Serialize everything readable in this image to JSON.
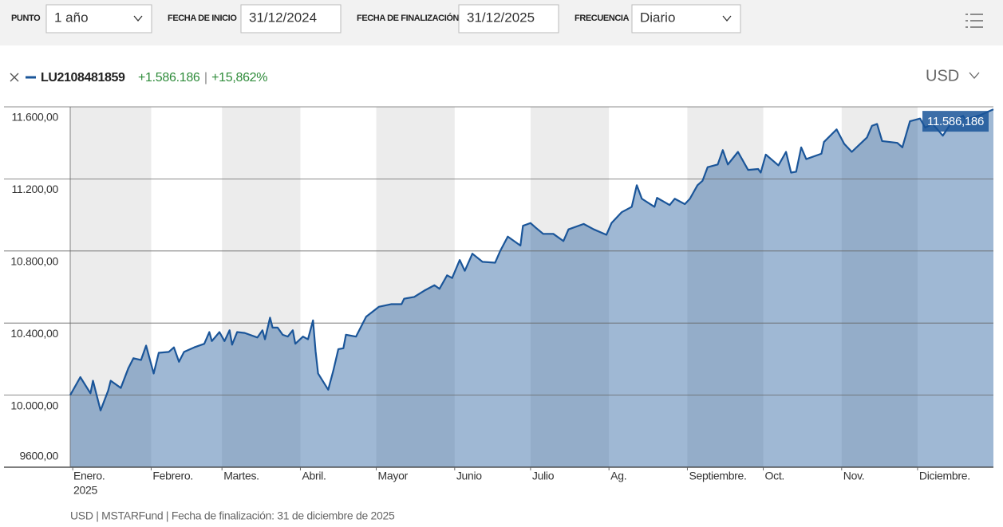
{
  "toolbar": {
    "fields": [
      {
        "label": "PUNTO",
        "value": "1 año"
      },
      {
        "label": "FECHA DE INICIO",
        "value": "31/12/2024"
      },
      {
        "label": "FECHA DE FINALIZACIÓN",
        "value": "31/12/2025"
      },
      {
        "label": "FRECUENCIA",
        "value": "Diario"
      }
    ]
  },
  "header": {
    "change": "+1.586.186",
    "separator": "|",
    "change_pct": "+15,862%",
    "currency": "USD"
  },
  "footnote": "USD | MSTARFund | Fecha de finalización: 31 de diciembre de 2025",
  "chart_data": {
    "type": "line",
    "x_sublabel": "2025",
    "x": [
      0,
      4,
      8,
      9,
      12,
      15,
      16,
      20,
      23,
      25,
      28,
      30,
      33,
      35,
      39,
      41,
      43,
      45,
      49,
      53,
      55,
      56,
      59,
      61,
      63,
      64,
      66,
      69,
      74,
      76,
      77,
      79,
      80,
      82,
      84,
      86,
      88,
      89,
      92,
      94,
      96,
      97,
      98,
      102,
      104,
      106,
      108,
      109,
      113,
      117,
      122,
      127,
      131,
      132,
      136,
      140,
      144,
      146,
      149,
      151,
      154,
      156,
      159,
      163,
      168,
      170,
      173,
      178,
      179,
      182,
      184,
      187,
      191,
      195,
      197,
      203,
      207,
      212,
      214,
      218,
      222,
      224,
      226,
      231,
      232,
      237,
      239,
      243,
      245,
      248,
      250,
      252,
      256,
      258,
      260,
      264,
      268,
      272,
      273,
      275,
      280,
      283,
      285,
      287,
      289,
      291,
      297,
      298,
      303,
      306,
      309,
      315,
      317,
      319,
      321,
      327,
      329,
      332,
      336,
      338,
      341,
      345,
      349,
      353,
      354,
      360,
      365
    ],
    "series": [
      {
        "name": "LU2108481859",
        "color": "#1a5599",
        "values": [
          10000,
          10100,
          10010,
          10080,
          9915,
          10025,
          10080,
          10040,
          10150,
          10205,
          10195,
          10275,
          10120,
          10235,
          10240,
          10265,
          10185,
          10240,
          10265,
          10285,
          10350,
          10300,
          10350,
          10300,
          10360,
          10280,
          10350,
          10345,
          10320,
          10360,
          10310,
          10430,
          10375,
          10375,
          10335,
          10325,
          10360,
          10285,
          10325,
          10310,
          10415,
          10245,
          10120,
          10030,
          10135,
          10255,
          10260,
          10335,
          10325,
          10435,
          10490,
          10505,
          10505,
          10535,
          10545,
          10580,
          10610,
          10590,
          10665,
          10650,
          10750,
          10690,
          10785,
          10740,
          10735,
          10800,
          10880,
          10830,
          10940,
          10955,
          10930,
          10895,
          10895,
          10855,
          10920,
          10950,
          10920,
          10890,
          10955,
          11015,
          11045,
          11165,
          11090,
          11045,
          11095,
          11055,
          11090,
          11060,
          11090,
          11165,
          11190,
          11265,
          11280,
          11360,
          11280,
          11350,
          11250,
          11255,
          11235,
          11335,
          11275,
          11350,
          11235,
          11240,
          11375,
          11310,
          11340,
          11405,
          11475,
          11395,
          11350,
          11430,
          11495,
          11505,
          11410,
          11400,
          11375,
          11520,
          11535,
          11485,
          11505,
          11440,
          11525,
          11550,
          11530,
          11555,
          11586.186
        ],
        "value_labels": [
          null,
          null,
          null,
          null,
          null,
          null,
          null,
          null,
          null,
          null,
          null,
          null,
          null,
          null,
          null,
          null,
          null,
          null,
          null,
          null,
          null,
          null,
          null,
          null,
          null,
          null,
          null,
          null,
          null,
          null,
          null,
          null,
          null,
          null,
          null,
          null,
          null,
          null,
          null,
          null,
          null,
          null,
          null,
          null,
          null,
          null,
          null,
          null,
          null,
          null,
          null,
          null,
          null,
          null,
          null,
          null,
          null,
          null,
          null,
          null,
          null,
          null,
          null,
          null,
          null,
          null,
          null,
          null,
          null,
          null,
          null,
          null,
          null,
          null,
          null,
          null,
          null,
          null,
          null,
          null,
          null,
          null,
          null,
          null,
          null,
          null,
          null,
          null,
          null,
          null,
          null,
          null,
          null,
          null,
          null,
          null,
          null,
          null,
          null,
          null,
          null,
          null,
          null,
          null,
          null,
          null,
          null,
          null,
          null,
          null,
          null,
          null,
          null,
          null,
          null,
          null,
          null,
          null,
          null,
          null,
          null,
          null,
          null,
          null,
          null,
          null,
          "11.586,186"
        ]
      }
    ],
    "xlim": [
      0,
      365
    ],
    "xticks": [
      {
        "value": 1,
        "label": "Enero."
      },
      {
        "value": 32,
        "label": "Febrero."
      },
      {
        "value": 60,
        "label": "Martes."
      },
      {
        "value": 91,
        "label": "Abril."
      },
      {
        "value": 121,
        "label": "Mayor"
      },
      {
        "value": 152,
        "label": "Junio"
      },
      {
        "value": 182,
        "label": "Julio"
      },
      {
        "value": 213,
        "label": "Ag."
      },
      {
        "value": 244,
        "label": "Septiembre."
      },
      {
        "value": 274,
        "label": "Oct."
      },
      {
        "value": 305,
        "label": "Nov."
      },
      {
        "value": 335,
        "label": "Diciembre."
      }
    ],
    "ylim": [
      9600,
      11600
    ],
    "yticks": [
      {
        "value": 9600,
        "label": "9600,00"
      },
      {
        "value": 10000,
        "label": "10.000,00"
      },
      {
        "value": 10400,
        "label": "10.400,00"
      },
      {
        "value": 10800,
        "label": "10.800,00"
      },
      {
        "value": 11200,
        "label": "11.200,00"
      },
      {
        "value": 11600,
        "label": "11.600,00"
      }
    ],
    "grid": true
  }
}
